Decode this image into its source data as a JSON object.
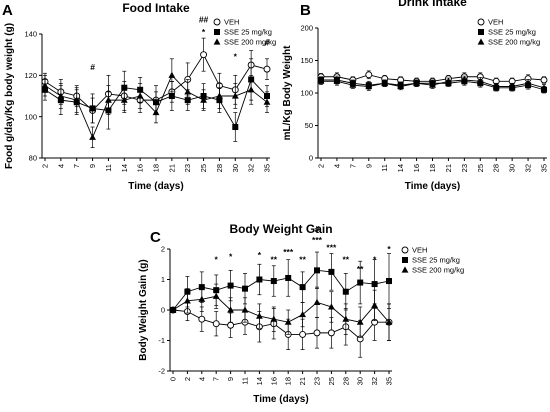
{
  "chart_data": [
    {
      "type": "line",
      "panel": "A",
      "title": "Food Intake",
      "xlabel": "Time (days)",
      "ylabel": "Food g/day/Kg body weight (g)",
      "categories": [
        2,
        4,
        7,
        9,
        11,
        14,
        16,
        18,
        21,
        23,
        25,
        28,
        30,
        32,
        35
      ],
      "ylim": [
        80,
        140
      ],
      "yticks": [
        80,
        100,
        120,
        140
      ],
      "grid": false,
      "legend": "top-right",
      "series": [
        {
          "name": "VEH",
          "marker": "circle-open",
          "values": [
            117,
            112,
            110,
            103,
            111,
            110,
            108,
            108,
            112,
            118,
            130,
            115,
            113,
            125,
            123
          ],
          "errors": [
            4,
            6,
            5,
            6,
            9,
            7,
            6,
            7,
            5,
            8,
            8,
            6,
            7,
            7,
            5
          ]
        },
        {
          "name": "SSE 25 mg/kg",
          "marker": "square-filled",
          "values": [
            113,
            108,
            107,
            104,
            103,
            114,
            113,
            107,
            110,
            108,
            110,
            108,
            95,
            118,
            110
          ],
          "errors": [
            5,
            7,
            6,
            7,
            9,
            8,
            6,
            5,
            7,
            5,
            6,
            6,
            7,
            10,
            5
          ]
        },
        {
          "name": "SSE 200 mg/kg",
          "marker": "triangle-filled",
          "values": [
            115,
            110,
            108,
            90,
            108,
            108,
            110,
            102,
            120,
            112,
            108,
            110,
            110,
            113,
            107
          ],
          "errors": [
            5,
            6,
            6,
            5,
            7,
            6,
            6,
            5,
            8,
            6,
            5,
            6,
            6,
            7,
            5
          ]
        }
      ],
      "annotations": [
        {
          "x": 9,
          "y": 124,
          "text": "#"
        },
        {
          "x": 25,
          "y": 147,
          "text": "##"
        },
        {
          "x": 25,
          "y": 141,
          "text": "*"
        },
        {
          "x": 30,
          "y": 129,
          "text": "*"
        },
        {
          "x": 35,
          "y": 136,
          "text": "#"
        }
      ]
    },
    {
      "type": "line",
      "panel": "B",
      "title": "Drink Intake",
      "xlabel": "Time (days)",
      "ylabel": "mL/Kg Body Weight",
      "categories": [
        2,
        4,
        7,
        9,
        11,
        14,
        16,
        18,
        21,
        23,
        25,
        28,
        30,
        32,
        35
      ],
      "ylim": [
        0,
        200
      ],
      "yticks": [
        0,
        50,
        100,
        150,
        200
      ],
      "grid": false,
      "legend": "top-right",
      "series": [
        {
          "name": "VEH",
          "marker": "circle-open",
          "values": [
            125,
            125,
            120,
            128,
            122,
            120,
            118,
            118,
            122,
            125,
            125,
            118,
            118,
            122,
            120
          ],
          "errors": [
            5,
            6,
            5,
            6,
            5,
            5,
            5,
            5,
            5,
            6,
            6,
            5,
            5,
            6,
            5
          ]
        },
        {
          "name": "SSE 25 mg/kg",
          "marker": "square-filled",
          "values": [
            120,
            120,
            115,
            112,
            115,
            112,
            115,
            115,
            115,
            118,
            115,
            108,
            108,
            112,
            105
          ],
          "errors": [
            5,
            6,
            5,
            6,
            5,
            5,
            5,
            5,
            5,
            6,
            6,
            5,
            5,
            6,
            5
          ]
        },
        {
          "name": "SSE 200 mg/kg",
          "marker": "triangle-filled",
          "values": [
            118,
            118,
            112,
            110,
            115,
            110,
            115,
            112,
            118,
            120,
            118,
            110,
            110,
            115,
            108
          ],
          "errors": [
            5,
            6,
            5,
            6,
            5,
            5,
            5,
            5,
            5,
            6,
            6,
            5,
            5,
            6,
            5
          ]
        }
      ]
    },
    {
      "type": "line",
      "panel": "C",
      "title": "Body Weight Gain",
      "xlabel": "Time (days)",
      "ylabel": "Body Weight Gain (g)",
      "categories": [
        0,
        2,
        4,
        7,
        9,
        11,
        14,
        16,
        18,
        21,
        23,
        25,
        28,
        30,
        32,
        35
      ],
      "ylim": [
        -2,
        2
      ],
      "yticks": [
        -2,
        -1,
        0,
        1,
        2
      ],
      "grid": false,
      "legend": "top-right",
      "series": [
        {
          "name": "VEH",
          "marker": "circle-open",
          "values": [
            0,
            -0.05,
            -0.3,
            -0.45,
            -0.5,
            -0.4,
            -0.55,
            -0.45,
            -0.8,
            -0.8,
            -0.75,
            -0.75,
            -0.55,
            -0.95,
            -0.4,
            -0.4
          ],
          "errors": [
            0,
            0.3,
            0.4,
            0.4,
            0.4,
            0.4,
            0.5,
            0.5,
            0.5,
            0.5,
            0.5,
            0.5,
            0.6,
            0.6,
            0.6,
            0.6
          ]
        },
        {
          "name": "SSE 25 mg/kg",
          "marker": "square-filled",
          "values": [
            0,
            0.6,
            0.75,
            0.65,
            0.8,
            0.7,
            1.0,
            0.95,
            1.05,
            0.75,
            1.3,
            1.25,
            0.6,
            0.9,
            0.85,
            0.95
          ],
          "errors": [
            0,
            0.5,
            0.5,
            0.5,
            0.5,
            0.5,
            0.5,
            0.5,
            0.6,
            0.5,
            0.6,
            0.6,
            0.6,
            0.7,
            0.8,
            0.9
          ]
        },
        {
          "name": "SSE 200 mg/kg",
          "marker": "triangle-filled",
          "values": [
            0,
            0.3,
            0.35,
            0.45,
            0.0,
            0.0,
            -0.2,
            -0.3,
            -0.4,
            -0.15,
            0.25,
            0.1,
            -0.3,
            -0.4,
            0.15,
            -0.4
          ],
          "errors": [
            0,
            0.4,
            0.4,
            0.4,
            0.4,
            0.4,
            0.4,
            0.4,
            0.4,
            0.4,
            0.5,
            0.5,
            0.5,
            0.5,
            0.5,
            0.6
          ]
        }
      ],
      "annotations": [
        {
          "x": 7,
          "y": 1.65,
          "text": "*"
        },
        {
          "x": 9,
          "y": 1.75,
          "text": "*"
        },
        {
          "x": 14,
          "y": 1.8,
          "text": "*"
        },
        {
          "x": 16,
          "y": 1.65,
          "text": "**"
        },
        {
          "x": 18,
          "y": 1.9,
          "text": "***"
        },
        {
          "x": 21,
          "y": 1.65,
          "text": "**"
        },
        {
          "x": 23,
          "y": 2.65,
          "text": "#"
        },
        {
          "x": 23,
          "y": 2.3,
          "text": "***"
        },
        {
          "x": 25,
          "y": 2.05,
          "text": "***"
        },
        {
          "x": 28,
          "y": 1.65,
          "text": "**"
        },
        {
          "x": 30,
          "y": 1.35,
          "text": "**"
        },
        {
          "x": 32,
          "y": 1.65,
          "text": "*"
        },
        {
          "x": 35,
          "y": 2.0,
          "text": "*"
        }
      ]
    }
  ]
}
